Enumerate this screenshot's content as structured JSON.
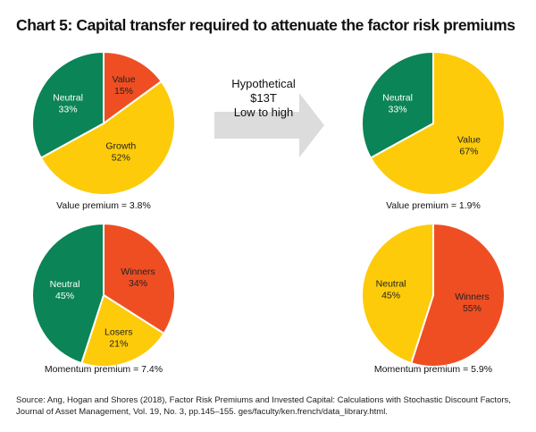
{
  "chart_data": [
    {
      "type": "pie",
      "id": "value-before",
      "caption": "Value premium = 3.8%",
      "slices": [
        {
          "label": "Value",
          "value": 15,
          "display": "15%",
          "color": "#ef4e23",
          "text_color": "#222222"
        },
        {
          "label": "Growth",
          "value": 52,
          "display": "52%",
          "color": "#fdcb0a",
          "text_color": "#222222"
        },
        {
          "label": "Neutral",
          "value": 33,
          "display": "33%",
          "color": "#0b8457",
          "text_color": "#ffffff"
        }
      ]
    },
    {
      "type": "pie",
      "id": "value-after",
      "caption": "Value premium = 1.9%",
      "slices": [
        {
          "label": "Value",
          "value": 67,
          "display": "67%",
          "color": "#fdcb0a",
          "text_color": "#222222"
        },
        {
          "label": "Neutral",
          "value": 33,
          "display": "33%",
          "color": "#0b8457",
          "text_color": "#ffffff"
        }
      ]
    },
    {
      "type": "pie",
      "id": "momentum-before",
      "caption": "Momentum premium = 7.4%",
      "slices": [
        {
          "label": "Winners",
          "value": 34,
          "display": "34%",
          "color": "#ef4e23",
          "text_color": "#222222"
        },
        {
          "label": "Losers",
          "value": 21,
          "display": "21%",
          "color": "#fdcb0a",
          "text_color": "#222222"
        },
        {
          "label": "Neutral",
          "value": 45,
          "display": "45%",
          "color": "#0b8457",
          "text_color": "#ffffff"
        }
      ]
    },
    {
      "type": "pie",
      "id": "momentum-after",
      "caption": "Momentum premium = 5.9%",
      "slices": [
        {
          "label": "Winners",
          "value": 55,
          "display": "55%",
          "color": "#ef4e23",
          "text_color": "#222222"
        },
        {
          "label": "Neutral",
          "value": 45,
          "display": "45%",
          "color": "#fdcb0a",
          "text_color": "#222222"
        }
      ]
    }
  ],
  "title": "Chart 5: Capital transfer required to attenuate the factor risk premiums",
  "arrow": {
    "lines": [
      "Hypothetical",
      "$13T",
      "Low to high"
    ],
    "color": "#dcdcdc"
  },
  "source": "Source: Ang, Hogan and Shores (2018), Factor Risk Premiums and Invested Capital: Calculations with Stochastic Discount Factors, Journal of Asset Management, Vol. 19, No. 3, pp.145–155. ges/faculty/ken.french/data_library.html."
}
